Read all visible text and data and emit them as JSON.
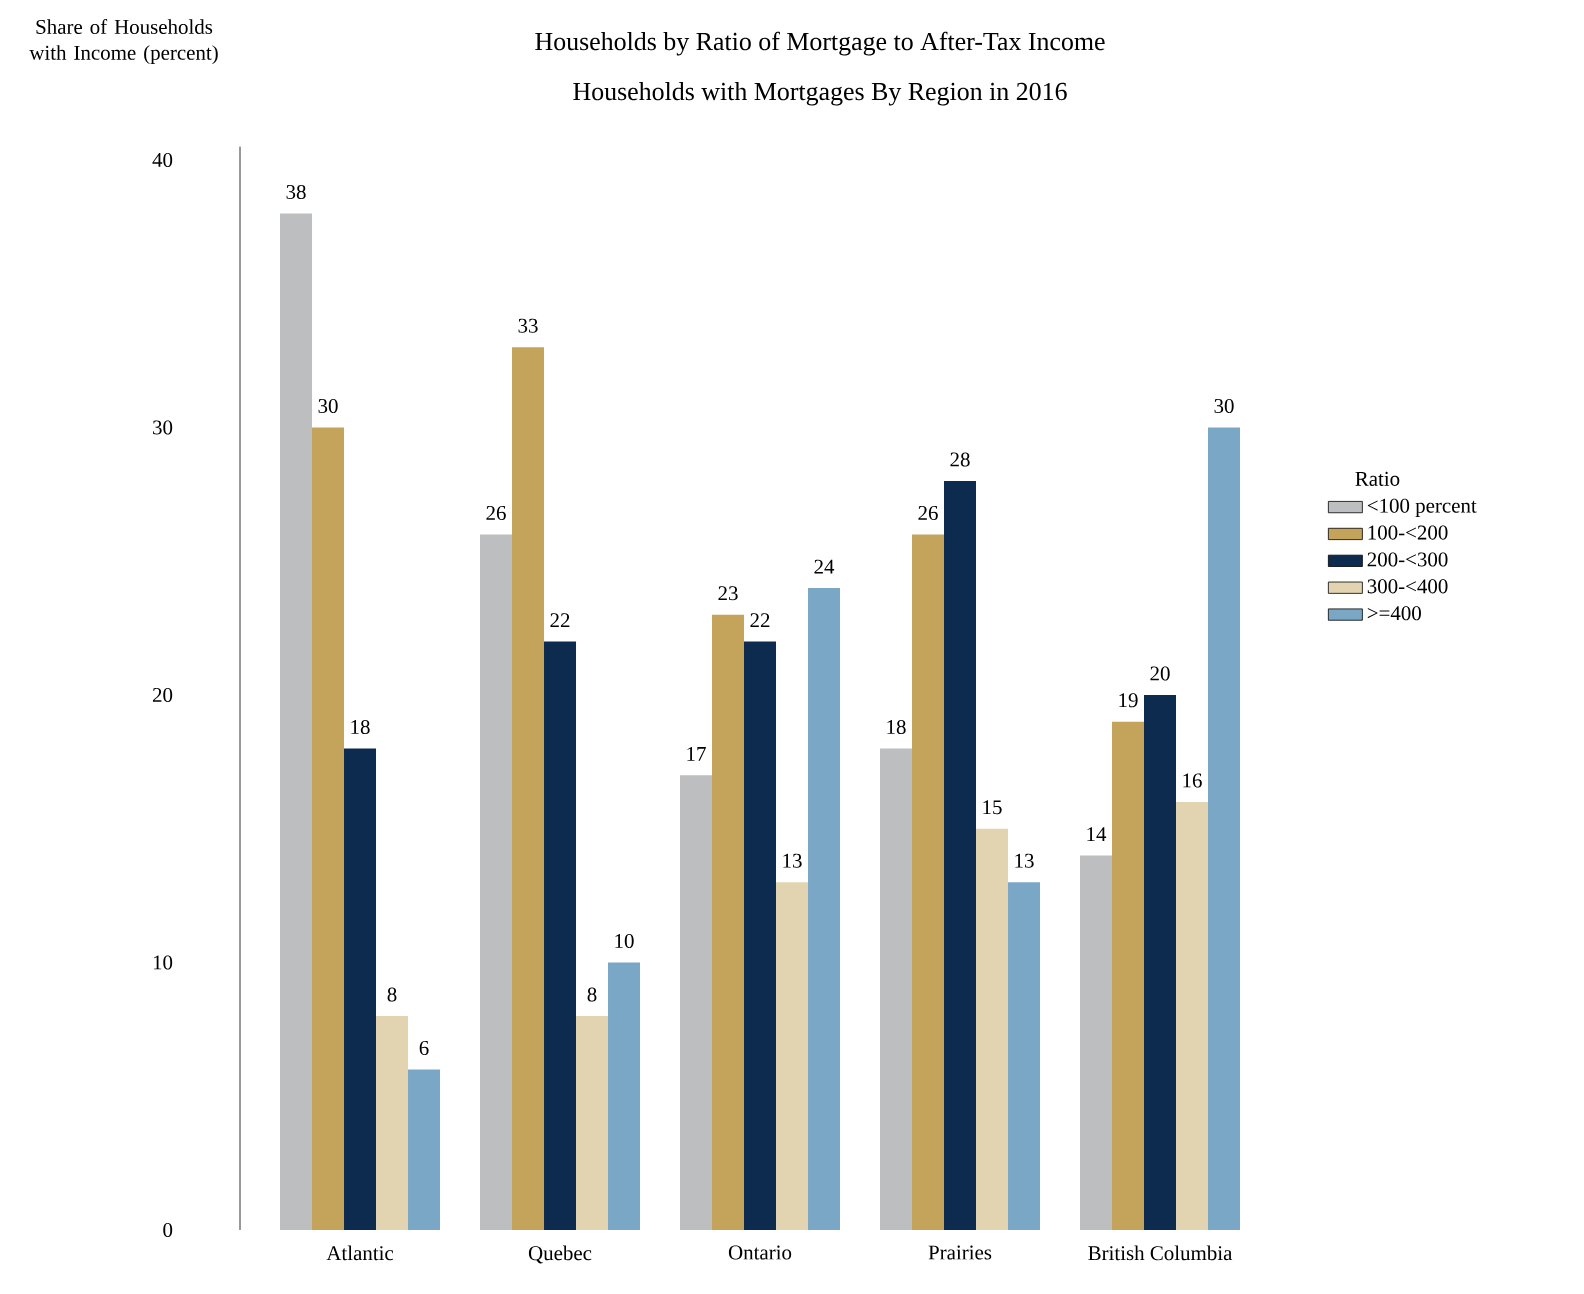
{
  "chart_data": {
    "type": "bar",
    "title": "Households by Ratio of Mortgage to After-Tax Income",
    "subtitle": "Households with Mortgages By Region in 2016",
    "ylabel": "Share of Households with Income (percent)",
    "legend_title": "Ratio",
    "categories": [
      "Atlantic",
      "Quebec",
      "Ontario",
      "Prairies",
      "British Columbia"
    ],
    "series": [
      {
        "name": "<100 percent",
        "color": "#bcbec0",
        "values": [
          38,
          26,
          17,
          18,
          14
        ]
      },
      {
        "name": "100-<200",
        "color": "#c4a35a",
        "values": [
          30,
          33,
          23,
          26,
          19
        ]
      },
      {
        "name": "200-<300",
        "color": "#0d2b4e",
        "values": [
          18,
          22,
          22,
          28,
          20
        ]
      },
      {
        "name": "300-<400",
        "color": "#e2d4b0",
        "values": [
          8,
          8,
          13,
          15,
          16
        ]
      },
      {
        "name": ">=400",
        "color": "#7ba7c7",
        "values": [
          6,
          10,
          24,
          13,
          30
        ]
      }
    ],
    "ylim": [
      0,
      40.5
    ],
    "yticks": [
      0,
      10,
      20,
      30,
      40
    ],
    "data_labels": true,
    "legend": "right",
    "grid": false
  }
}
